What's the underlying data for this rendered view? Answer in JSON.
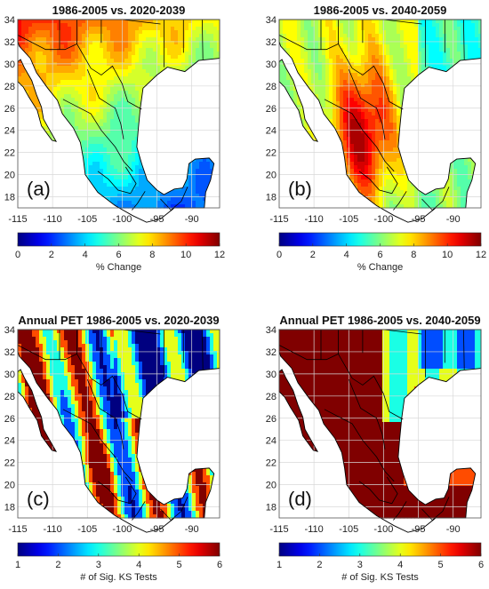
{
  "figure": {
    "panels": [
      {
        "id": "a",
        "title": "1986-2005 vs. 2020-2039",
        "label": "(a)",
        "colorbar_label": "% Change"
      },
      {
        "id": "b",
        "title": "1986-2005 vs. 2040-2059",
        "label": "(b)",
        "colorbar_label": "% Change"
      },
      {
        "id": "c",
        "title": "Annual PET 1986-2005 vs. 2020-2039",
        "label": "(c)",
        "colorbar_label": "# of Sig. KS Tests"
      },
      {
        "id": "d",
        "title": "Annual PET 1986-2005 vs. 2040-2059",
        "label": "(d)",
        "colorbar_label": "# of Sig. KS Tests"
      }
    ],
    "colors": {
      "ocean": "#ffffff",
      "colormap": "jet",
      "boundaries": "#000000",
      "grid": "#d8d8d8"
    }
  },
  "chart_data": [
    {
      "type": "heatmap",
      "title": "1986-2005 vs. 2020-2039",
      "xlim": [
        -115,
        -86
      ],
      "ylim": [
        17,
        34
      ],
      "x_ticks": [
        -115,
        -110,
        -105,
        -100,
        -95,
        -90
      ],
      "y_ticks": [
        34,
        32,
        30,
        28,
        26,
        24,
        22,
        20,
        18
      ],
      "colorbar": {
        "label": "% Change",
        "range": [
          0,
          12
        ],
        "ticks": [
          0,
          2,
          4,
          6,
          8,
          10,
          12
        ]
      },
      "grid": true
    },
    {
      "type": "heatmap",
      "title": "1986-2005 vs. 2040-2059",
      "xlim": [
        -115,
        -86
      ],
      "ylim": [
        17,
        34
      ],
      "x_ticks": [
        -115,
        -110,
        -105,
        -100,
        -95,
        -90
      ],
      "y_ticks": [
        34,
        32,
        30,
        28,
        26,
        24,
        22,
        20,
        18
      ],
      "colorbar": {
        "label": "% Change",
        "range": [
          0,
          12
        ],
        "ticks": [
          0,
          2,
          4,
          6,
          8,
          10,
          12
        ]
      },
      "grid": true
    },
    {
      "type": "heatmap",
      "title": "Annual PET 1986-2005 vs. 2020-2039",
      "xlim": [
        -115,
        -86
      ],
      "ylim": [
        17,
        34
      ],
      "x_ticks": [
        -115,
        -110,
        -105,
        -100,
        -95,
        -90
      ],
      "y_ticks": [
        34,
        32,
        30,
        28,
        26,
        24,
        22,
        20,
        18
      ],
      "colorbar": {
        "label": "# of Sig. KS Tests",
        "range": [
          1,
          6
        ],
        "ticks": [
          1,
          2,
          3,
          4,
          5,
          6
        ]
      },
      "grid": true
    },
    {
      "type": "heatmap",
      "title": "Annual PET 1986-2005 vs. 2040-2059",
      "xlim": [
        -115,
        -86
      ],
      "ylim": [
        17,
        34
      ],
      "x_ticks": [
        -115,
        -110,
        -105,
        -100,
        -95,
        -90
      ],
      "y_ticks": [
        34,
        32,
        30,
        28,
        26,
        24,
        22,
        20,
        18
      ],
      "colorbar": {
        "label": "# of Sig. KS Tests",
        "range": [
          1,
          6
        ],
        "ticks": [
          1,
          2,
          3,
          4,
          5,
          6
        ]
      },
      "grid": true
    }
  ]
}
